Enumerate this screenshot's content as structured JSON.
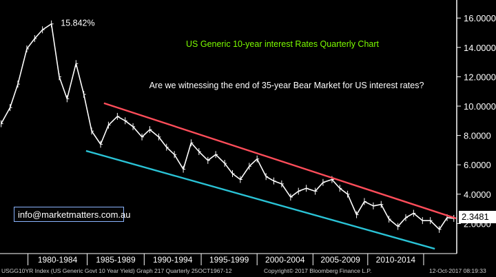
{
  "chart_data": {
    "type": "line",
    "style": "high-low bars, quarterly",
    "title": "US Generic 10-year interest Rates Quarterly Chart",
    "subtitle": "Are we witnessing the end of 35-year Bear Market for US interest rates?",
    "xlabel": "",
    "ylabel": "",
    "x_range": [
      1977,
      2017.8
    ],
    "ylim": [
      0,
      17
    ],
    "y_ticks": [
      "16.0000",
      "14.0000",
      "12.0000",
      "10.0000",
      "8.0000",
      "6.0000",
      "4.0000",
      "2.0000"
    ],
    "y_tick_values": [
      16,
      14,
      12,
      10,
      8,
      6,
      4,
      2
    ],
    "x_tick_labels": [
      "1980-1984",
      "1985-1989",
      "1990-1994",
      "1995-1999",
      "2000-2004",
      "2005-2009",
      "2010-2014"
    ],
    "peak_label": "15.842%",
    "peak": {
      "x": 1981.7,
      "y": 15.84
    },
    "last_value_label": "2.3481",
    "series": [
      {
        "color": "#ffffff",
        "x": [
          1977.1,
          1977.9,
          1978.6,
          1979.4,
          1980.1,
          1980.8,
          1981.6,
          1982.3,
          1983.0,
          1983.8,
          1984.5,
          1985.2,
          1986.0,
          1986.7,
          1987.5,
          1988.2,
          1988.9,
          1989.7,
          1990.4,
          1991.2,
          1991.9,
          1992.6,
          1993.4,
          1994.1,
          1994.8,
          1995.6,
          1996.3,
          1997.1,
          1997.8,
          1998.5,
          1999.3,
          2000.0,
          2000.8,
          2001.5,
          2002.2,
          2003.0,
          2003.7,
          2004.4,
          2005.2,
          2005.9,
          2006.7,
          2007.4,
          2008.1,
          2008.9,
          2009.6,
          2010.4,
          2011.1,
          2011.8,
          2012.6,
          2013.3,
          2014.0,
          2014.8,
          2015.5,
          2016.3,
          2017.0,
          2017.6
        ],
        "values": [
          8.8,
          9.9,
          11.5,
          13.9,
          14.6,
          15.2,
          15.6,
          12.0,
          10.5,
          12.9,
          10.8,
          8.3,
          7.4,
          8.7,
          9.3,
          9.0,
          8.6,
          7.9,
          8.4,
          7.9,
          7.2,
          6.7,
          5.7,
          7.5,
          6.9,
          6.3,
          6.7,
          6.1,
          5.4,
          5.0,
          5.9,
          6.4,
          5.2,
          4.9,
          4.7,
          3.8,
          4.2,
          4.4,
          4.2,
          4.8,
          5.0,
          4.4,
          4.0,
          2.6,
          3.5,
          3.2,
          3.3,
          2.3,
          1.8,
          2.4,
          2.7,
          2.2,
          2.2,
          1.6,
          2.4,
          2.35
        ]
      },
      {
        "color": "#ff4d5a",
        "x": [
          1986.3,
          2017.8
        ],
        "values": [
          10.2,
          2.35
        ]
      },
      {
        "color": "#2ac3d6",
        "x": [
          1984.7,
          2015.9
        ],
        "values": [
          6.95,
          0.28
        ]
      }
    ],
    "grid": false,
    "legend": "none",
    "colors": {
      "background": "#000000",
      "title": "#7cfc00",
      "subtitle": "#ffffff"
    }
  },
  "overlay": {
    "email": "info@marketmatters.com.au"
  },
  "footer": {
    "left": "USGG10YR Index (US Generic Govt 10 Year Yield) Graph 217  Quarterly 25OCT1967-12",
    "center": "Copyright© 2017 Bloomberg Finance L.P.",
    "right": "12-Oct-2017 08:19:33"
  }
}
